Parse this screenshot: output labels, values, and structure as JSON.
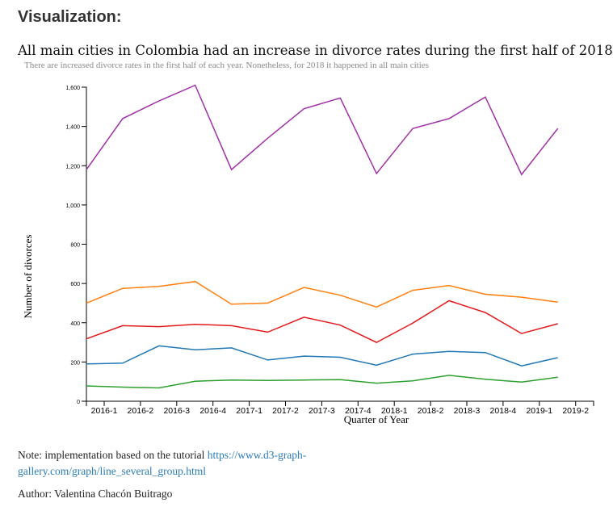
{
  "heading": "Visualization:",
  "chart_data": {
    "type": "line",
    "title": "All main cities in Colombia had an increase in divorce rates during the first half of 2018",
    "subtitle": "There are increased divorce rates in the first half of each year. Nonetheless, for 2018 it happened in all main cities",
    "xlabel": "Quarter of Year",
    "ylabel": "Number of divorces",
    "categories": [
      "2016-1",
      "2016-2",
      "2016-3",
      "2016-4",
      "2017-1",
      "2017-2",
      "2017-3",
      "2017-4",
      "2018-1",
      "2018-2",
      "2018-3",
      "2018-4",
      "2019-1",
      "2019-2"
    ],
    "ylim": [
      0,
      1600
    ],
    "yticks": [
      0,
      200,
      400,
      600,
      800,
      1000,
      1200,
      1400,
      1600
    ],
    "ytick_labels": [
      "0",
      "200",
      "400",
      "600",
      "800",
      "1,000",
      "1,200",
      "1,400",
      "1,600"
    ],
    "grid": false,
    "series": [
      {
        "color": "#a032a8",
        "values": [
          1180,
          1440,
          1530,
          1610,
          1180,
          1340,
          1490,
          1545,
          1160,
          1390,
          1440,
          1550,
          1155,
          1390
        ]
      },
      {
        "color": "#ff7f0e",
        "values": [
          500,
          575,
          585,
          610,
          495,
          500,
          580,
          540,
          480,
          565,
          590,
          545,
          530,
          505
        ]
      },
      {
        "color": "#e31a1c",
        "values": [
          318,
          385,
          380,
          392,
          385,
          352,
          428,
          388,
          300,
          398,
          512,
          452,
          345,
          395
        ]
      },
      {
        "color": "#1f77b4",
        "values": [
          190,
          194,
          282,
          262,
          272,
          210,
          230,
          224,
          184,
          240,
          254,
          248,
          180,
          222
        ]
      },
      {
        "color": "#2ca02c",
        "values": [
          78,
          72,
          68,
          102,
          108,
          106,
          108,
          110,
          92,
          104,
          132,
          112,
          98,
          122
        ]
      }
    ]
  },
  "note": {
    "prefix": "Note: implementation based on the tutorial ",
    "link_text": "https://www.d3-graph-gallery.com/graph/line_several_group.html"
  },
  "author": "Author: Valentina Chacón Buitrago"
}
